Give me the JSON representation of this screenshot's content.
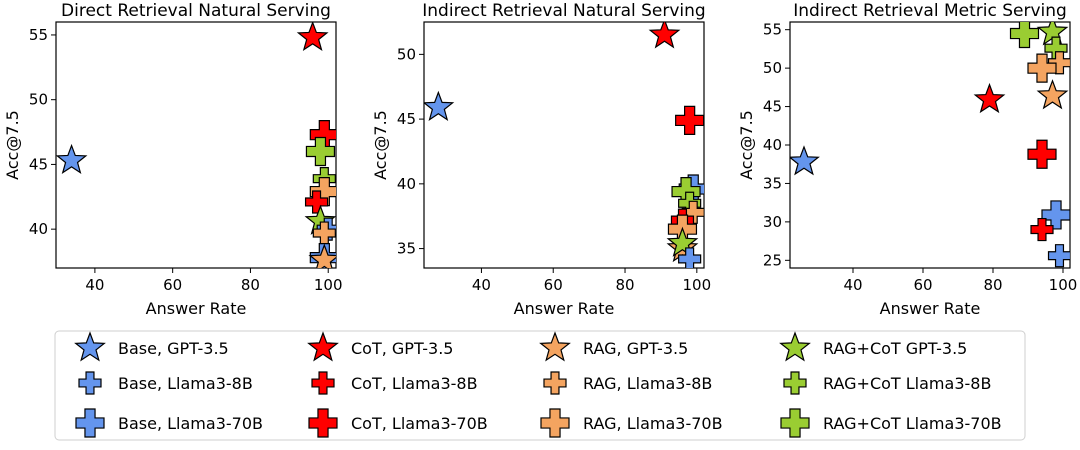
{
  "colors": {
    "Base": "#6495ED",
    "CoT": "#FF0000",
    "RAG": "#F4A460",
    "RAG+CoT": "#9ACD32"
  },
  "chart_data": [
    {
      "type": "scatter",
      "title": "Direct Retrieval Natural Serving",
      "xlabel": "Answer Rate",
      "ylabel": "Acc@7.5",
      "xlim": [
        30,
        102
      ],
      "ylim": [
        37,
        56
      ],
      "xticks": [
        "40",
        "60",
        "80",
        "100"
      ],
      "yticks": [
        "40",
        "45",
        "50",
        "55"
      ],
      "points": [
        {
          "series": "Base, GPT-3.5",
          "x": 34,
          "y": 45.3
        },
        {
          "series": "CoT, GPT-3.5",
          "x": 96,
          "y": 54.8
        },
        {
          "series": "CoT, Llama3-70B",
          "x": 99,
          "y": 47.3
        },
        {
          "series": "RAG+CoT Llama3-70B",
          "x": 98,
          "y": 46
        },
        {
          "series": "RAG+CoT Llama3-8B",
          "x": 99,
          "y": 43.9
        },
        {
          "series": "RAG, Llama3-70B",
          "x": 99,
          "y": 42.9
        },
        {
          "series": "CoT, Llama3-8B",
          "x": 97,
          "y": 42.1
        },
        {
          "series": "RAG+CoT GPT-3.5",
          "x": 98,
          "y": 40.6
        },
        {
          "series": "Base, Llama3-8B",
          "x": 100,
          "y": 40
        },
        {
          "series": "RAG, Llama3-8B",
          "x": 99,
          "y": 39.7
        },
        {
          "series": "Base, Llama3-70B",
          "x": 99,
          "y": 37.8
        },
        {
          "series": "RAG, GPT-3.5",
          "x": 99,
          "y": 37.6
        }
      ]
    },
    {
      "type": "scatter",
      "title": "Indirect Retrieval Natural Serving",
      "xlabel": "Answer Rate",
      "ylabel": "Acc@7.5",
      "xlim": [
        24,
        102
      ],
      "ylim": [
        33.5,
        52.5
      ],
      "xticks": [
        "40",
        "60",
        "80",
        "100"
      ],
      "yticks": [
        "35",
        "40",
        "45",
        "50"
      ],
      "points": [
        {
          "series": "Base, GPT-3.5",
          "x": 28,
          "y": 45.9
        },
        {
          "series": "CoT, GPT-3.5",
          "x": 91,
          "y": 51.5
        },
        {
          "series": "CoT, Llama3-70B",
          "x": 98,
          "y": 44.9
        },
        {
          "series": "Base, Llama3-70B",
          "x": 99,
          "y": 39.6
        },
        {
          "series": "RAG+CoT Llama3-70B",
          "x": 97,
          "y": 39.4
        },
        {
          "series": "RAG+CoT Llama3-8B",
          "x": 98,
          "y": 38.5
        },
        {
          "series": "RAG, Llama3-8B",
          "x": 99,
          "y": 37.8
        },
        {
          "series": "CoT, Llama3-8B",
          "x": 96,
          "y": 37.2
        },
        {
          "series": "RAG, Llama3-70B",
          "x": 96,
          "y": 36.5
        },
        {
          "series": "RAG, GPT-3.5",
          "x": 96,
          "y": 35
        },
        {
          "series": "RAG+CoT GPT-3.5",
          "x": 96,
          "y": 35.4
        },
        {
          "series": "Base, Llama3-8B",
          "x": 98,
          "y": 34.2
        }
      ]
    },
    {
      "type": "scatter",
      "title": "Indirect Retrieval Metric Serving",
      "xlabel": "Answer Rate",
      "ylabel": "Acc@7.5",
      "xlim": [
        22,
        102
      ],
      "ylim": [
        24,
        56
      ],
      "xticks": [
        "40",
        "60",
        "80",
        "100"
      ],
      "yticks": [
        "25",
        "30",
        "35",
        "40",
        "45",
        "50",
        "55"
      ],
      "points": [
        {
          "series": "Base, GPT-3.5",
          "x": 26,
          "y": 37.8
        },
        {
          "series": "CoT, GPT-3.5",
          "x": 79,
          "y": 45.9
        },
        {
          "series": "RAG+CoT Llama3-70B",
          "x": 89,
          "y": 54.5
        },
        {
          "series": "RAG+CoT GPT-3.5",
          "x": 97,
          "y": 54.7
        },
        {
          "series": "RAG+CoT Llama3-8B",
          "x": 98,
          "y": 52.6
        },
        {
          "series": "RAG, Llama3-8B",
          "x": 99,
          "y": 50.7
        },
        {
          "series": "RAG, Llama3-70B",
          "x": 94,
          "y": 50
        },
        {
          "series": "RAG, GPT-3.5",
          "x": 97,
          "y": 46.4
        },
        {
          "series": "CoT, Llama3-70B",
          "x": 94,
          "y": 38.8
        },
        {
          "series": "Base, Llama3-70B",
          "x": 98,
          "y": 30.9
        },
        {
          "series": "CoT, Llama3-8B",
          "x": 94,
          "y": 29
        },
        {
          "series": "Base, Llama3-8B",
          "x": 99,
          "y": 25.6
        }
      ]
    }
  ],
  "legend": [
    {
      "label": "Base, GPT-3.5",
      "method": "Base",
      "marker": "star"
    },
    {
      "label": "CoT, GPT-3.5",
      "method": "CoT",
      "marker": "star"
    },
    {
      "label": "RAG, GPT-3.5",
      "method": "RAG",
      "marker": "star"
    },
    {
      "label": "RAG+CoT GPT-3.5",
      "method": "RAG+CoT",
      "marker": "star"
    },
    {
      "label": "Base, Llama3-8B",
      "method": "Base",
      "marker": "plus-small"
    },
    {
      "label": "CoT, Llama3-8B",
      "method": "CoT",
      "marker": "plus-small"
    },
    {
      "label": "RAG, Llama3-8B",
      "method": "RAG",
      "marker": "plus-small"
    },
    {
      "label": "RAG+CoT Llama3-8B",
      "method": "RAG+CoT",
      "marker": "plus-small"
    },
    {
      "label": "Base, Llama3-70B",
      "method": "Base",
      "marker": "plus-large"
    },
    {
      "label": "CoT, Llama3-70B",
      "method": "CoT",
      "marker": "plus-large"
    },
    {
      "label": "RAG, Llama3-70B",
      "method": "RAG",
      "marker": "plus-large"
    },
    {
      "label": "RAG+CoT Llama3-70B",
      "method": "RAG+CoT",
      "marker": "plus-large"
    }
  ]
}
